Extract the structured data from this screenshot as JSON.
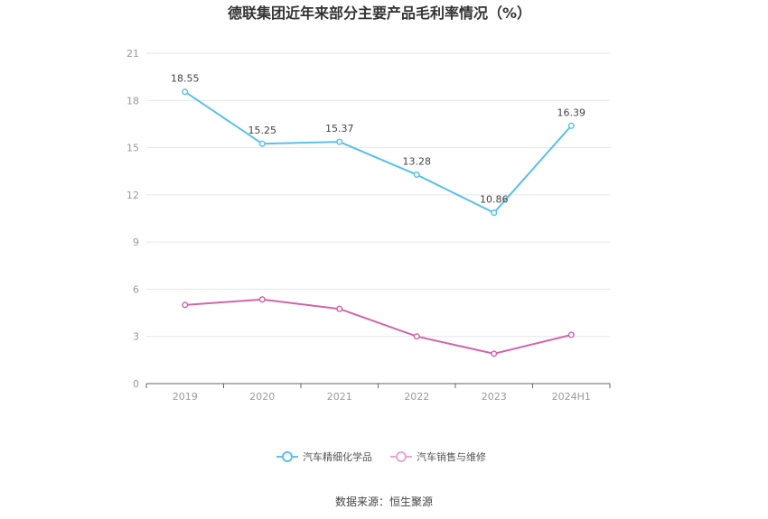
{
  "chart_data": {
    "type": "line",
    "title": "德联集团近年来部分主要产品毛利率情况（%）",
    "categories": [
      "2019",
      "2020",
      "2021",
      "2022",
      "2023",
      "2024H1"
    ],
    "ylim": [
      0,
      21
    ],
    "yticks": [
      "0",
      "3",
      "6",
      "9",
      "12",
      "15",
      "18",
      "21"
    ],
    "grid": true,
    "legend_position": "bottom",
    "series": [
      {
        "name": "汽车精细化学品",
        "color": "#5bc0eb",
        "values": [
          18.55,
          15.25,
          15.37,
          13.28,
          10.86,
          16.39
        ],
        "labels": [
          "18.55",
          "15.25",
          "15.37",
          "13.28",
          "10.86",
          "16.39"
        ]
      },
      {
        "name": "汽车销售与维修",
        "color": "#d066a8",
        "legend_color": "#e9a6d0",
        "values": [
          5.0,
          5.35,
          4.75,
          3.0,
          1.9,
          3.1
        ]
      }
    ]
  },
  "source_note": "数据来源：恒生聚源"
}
